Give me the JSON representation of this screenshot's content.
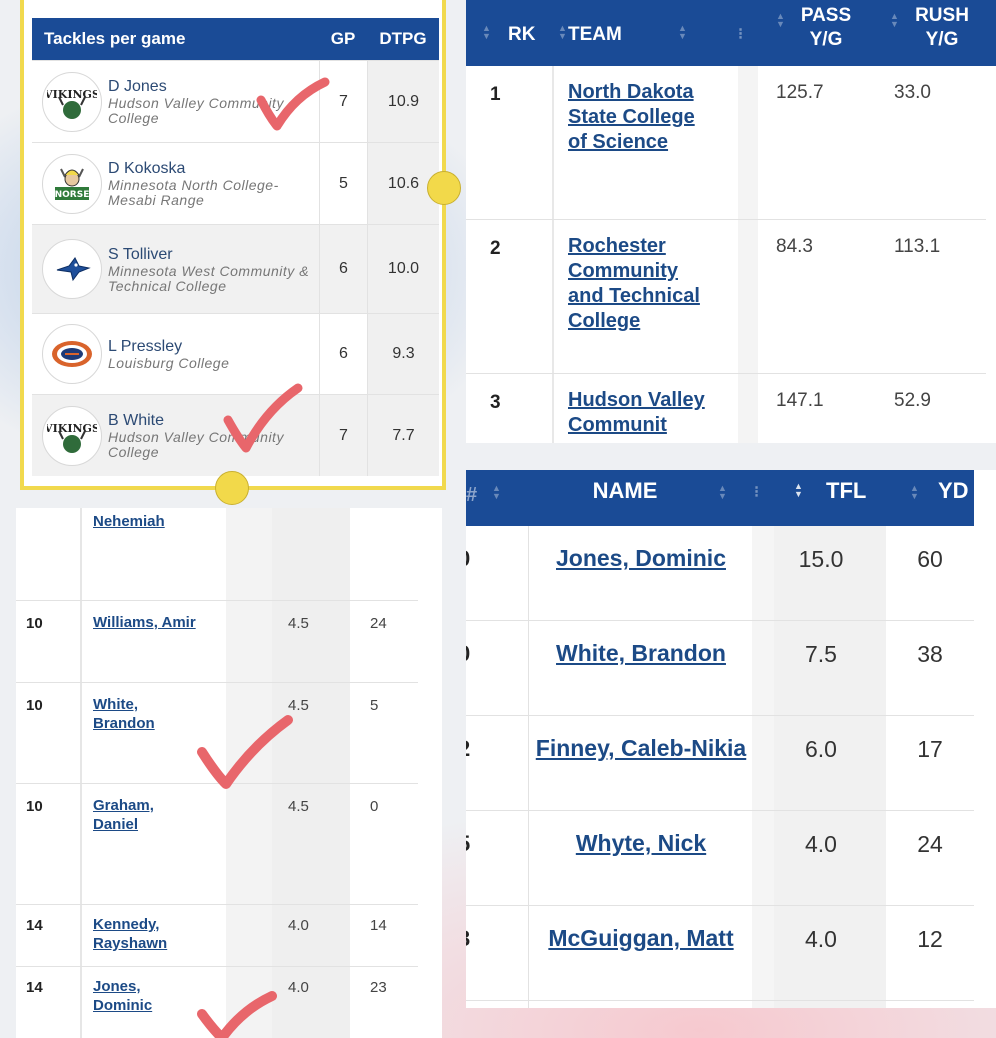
{
  "tackles_panel": {
    "header": {
      "title": "Tackles per game",
      "gp": "GP",
      "dtpg": "DTPG"
    },
    "rows": [
      {
        "name": "D Jones",
        "team": "Hudson Valley Community College",
        "gp": "7",
        "dtpg": "10.9",
        "logo": "vikings-logo"
      },
      {
        "name": "D Kokoska",
        "team": "Minnesota North College- Mesabi Range",
        "gp": "5",
        "dtpg": "10.6",
        "logo": "norse-logo"
      },
      {
        "name": "S Tolliver",
        "team": "Minnesota West Community & Technical College",
        "gp": "6",
        "dtpg": "10.0",
        "logo": "bluejay-logo"
      },
      {
        "name": "L Pressley",
        "team": "Louisburg College",
        "gp": "6",
        "dtpg": "9.3",
        "logo": "louisburg-logo"
      },
      {
        "name": "B White",
        "team": "Hudson Valley Community College",
        "gp": "7",
        "dtpg": "7.7",
        "logo": "vikings-logo"
      }
    ]
  },
  "team_panel": {
    "header": {
      "rk": "RK",
      "team": "TEAM",
      "pass": "PASS Y/G",
      "rush": "RUSH Y/G"
    },
    "rows": [
      {
        "rk": "1",
        "team": "North Dakota State College of Science",
        "pass": "125.7",
        "rush": "33.0"
      },
      {
        "rk": "2",
        "team": "Rochester Community and Technical College",
        "pass": "84.3",
        "rush": "113.1"
      },
      {
        "rk": "3",
        "team": "Hudson Valley Communit",
        "pass": "147.1",
        "rush": "52.9"
      }
    ]
  },
  "leaders_panel": {
    "rows": [
      {
        "rank": "",
        "name": "Nehemiah",
        "v1": "",
        "v2": ""
      },
      {
        "rank": "10",
        "name": "Williams, Amir",
        "v1": "4.5",
        "v2": "24"
      },
      {
        "rank": "10",
        "name": "White, Brandon",
        "v1": "4.5",
        "v2": "5"
      },
      {
        "rank": "10",
        "name": "Graham, Daniel",
        "v1": "4.5",
        "v2": "0"
      },
      {
        "rank": "14",
        "name": "Kennedy, Rayshawn",
        "v1": "4.0",
        "v2": "14"
      },
      {
        "rank": "14",
        "name": "Jones, Dominic",
        "v1": "4.0",
        "v2": "23"
      }
    ]
  },
  "tfl_panel": {
    "header": {
      "rank": "#",
      "name": "NAME",
      "tfl": "TFL",
      "yd": "YD"
    },
    "rows": [
      {
        "rank": "0",
        "name": "Jones, Dominic",
        "tfl": "15.0",
        "yd": "60"
      },
      {
        "rank": "0",
        "name": "White, Brandon",
        "tfl": "7.5",
        "yd": "38"
      },
      {
        "rank": "2",
        "name": "Finney, Caleb-Nikia",
        "tfl": "6.0",
        "yd": "17"
      },
      {
        "rank": "5",
        "name": "Whyte, Nick",
        "tfl": "4.0",
        "yd": "24"
      },
      {
        "rank": "3",
        "name": "McGuiggan, Matt",
        "tfl": "4.0",
        "yd": "12"
      }
    ]
  },
  "annotations": {
    "check_color": "#e8666b",
    "dot_color": "#f2d94a"
  }
}
